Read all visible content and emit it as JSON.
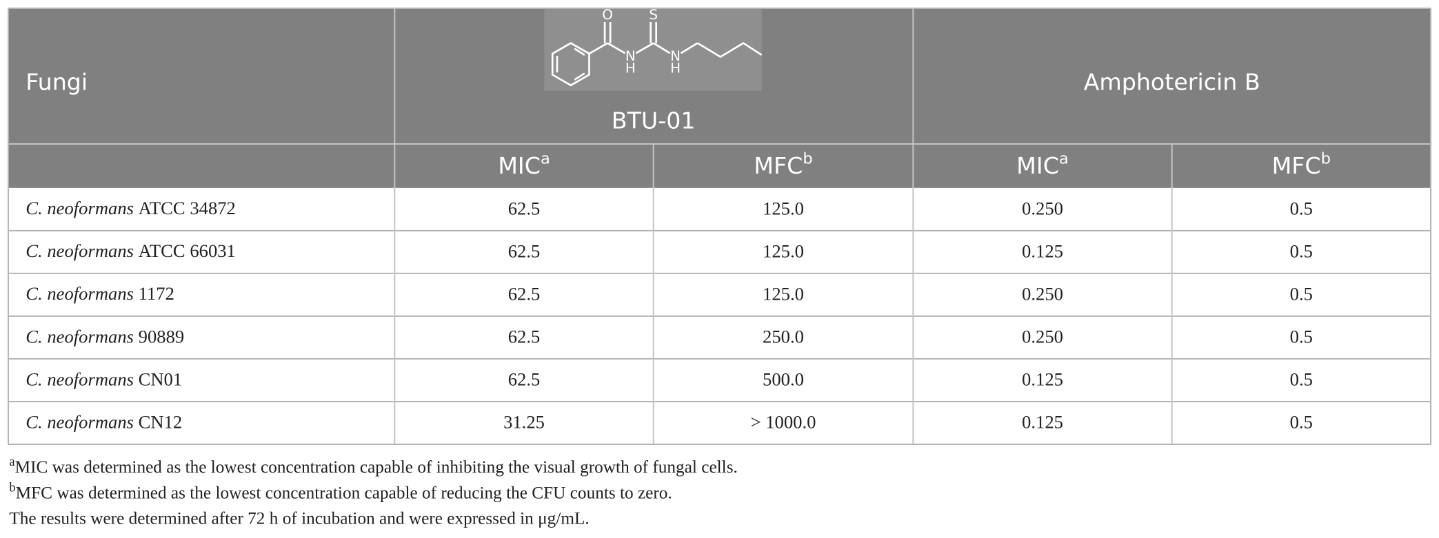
{
  "header": {
    "fungi": "Fungi",
    "compound1": "BTU-01",
    "compound2": "Amphotericin B",
    "structure_atoms": [
      "O",
      "S",
      "N",
      "H",
      "N",
      "H"
    ],
    "subheaders": [
      {
        "text": "MIC",
        "sup": "a"
      },
      {
        "text": "MFC",
        "sup": "b"
      },
      {
        "text": "MIC",
        "sup": "a"
      },
      {
        "text": "MFC",
        "sup": "b"
      }
    ]
  },
  "table": {
    "rows": [
      {
        "genus": "C. neoformans",
        "strain": "ATCC 34872",
        "cells": [
          "62.5",
          "125.0",
          "0.250",
          "0.5"
        ]
      },
      {
        "genus": "C. neoformans",
        "strain": "ATCC 66031",
        "cells": [
          "62.5",
          "125.0",
          "0.125",
          "0.5"
        ]
      },
      {
        "genus": "C. neoformans",
        "strain": "1172",
        "cells": [
          "62.5",
          "125.0",
          "0.250",
          "0.5"
        ]
      },
      {
        "genus": "C. neoformans",
        "strain": "90889",
        "cells": [
          "62.5",
          "250.0",
          "0.250",
          "0.5"
        ]
      },
      {
        "genus": "C. neoformans",
        "strain": "CN01",
        "cells": [
          "62.5",
          "500.0",
          "0.125",
          "0.5"
        ]
      },
      {
        "genus": "C. neoformans",
        "strain": "CN12",
        "cells": [
          "31.25",
          "> 1000.0",
          "0.125",
          "0.5"
        ]
      }
    ]
  },
  "footnotes": [
    {
      "sup": "a",
      "text": "MIC was determined as the lowest concentration capable of inhibiting the visual growth of fungal cells."
    },
    {
      "sup": "b",
      "text": "MFC was determined as the lowest concentration capable of reducing the CFU counts to zero."
    },
    {
      "sup": null,
      "text": "The results were determined after 72 h of incubation and were expressed in μg/mL."
    }
  ]
}
